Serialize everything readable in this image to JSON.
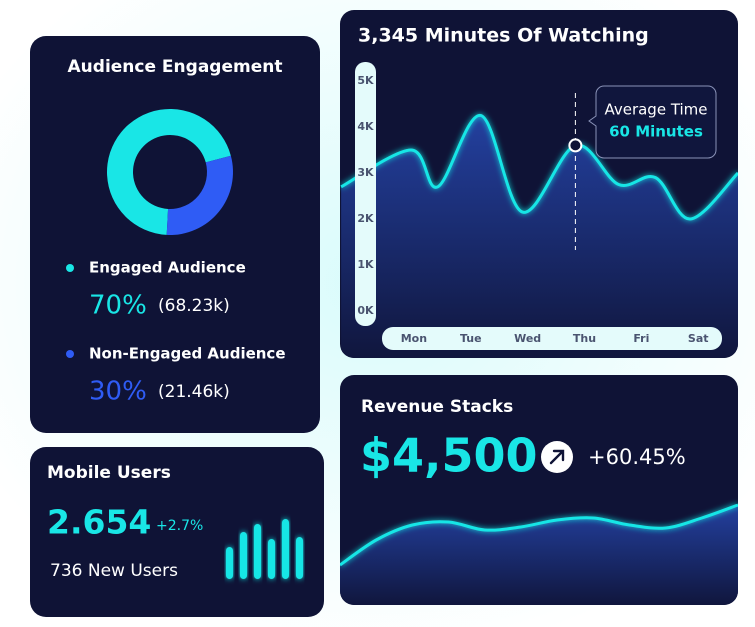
{
  "chart_data": [
    {
      "type": "pie",
      "title": "Audience Engagement",
      "categories": [
        "Engaged Audience",
        "Non-Engaged Audience"
      ],
      "values": [
        70,
        30
      ],
      "value_labels": [
        "70%",
        "30%"
      ],
      "count_labels": [
        "(68.23k)",
        "(21.46k)"
      ],
      "colors": [
        "#19e6e6",
        "#2f5cf5"
      ]
    },
    {
      "type": "line",
      "title": "3,345 Minutes Of Watching",
      "x": [
        -1.28,
        -0.05,
        0.42,
        1.18,
        1.91,
        2.84,
        3.6,
        4.25,
        4.86,
        5.7
      ],
      "values": [
        2700,
        3500,
        2700,
        4250,
        2150,
        3600,
        2750,
        2900,
        2000,
        3000
      ],
      "xlim": [
        -1.3,
        5.7
      ],
      "xticks": [
        {
          "value": 0,
          "label": "Mon"
        },
        {
          "value": 1,
          "label": "Tue"
        },
        {
          "value": 2,
          "label": "Wed"
        },
        {
          "value": 3,
          "label": "Thu"
        },
        {
          "value": 4,
          "label": "Fri"
        },
        {
          "value": 5,
          "label": "Sat"
        }
      ],
      "ylim": [
        0,
        5000
      ],
      "yticks": [
        {
          "value": 0,
          "label": "0K"
        },
        {
          "value": 1000,
          "label": "1K"
        },
        {
          "value": 2000,
          "label": "2K"
        },
        {
          "value": 3000,
          "label": "3K"
        },
        {
          "value": 4000,
          "label": "4K"
        },
        {
          "value": 5000,
          "label": "5K"
        }
      ],
      "color": "#19e6e6",
      "annotation": {
        "x": 2.84,
        "y": 3600,
        "title": "Average Time",
        "text": "60 Minutes"
      }
    },
    {
      "type": "bar",
      "title": "Mobile Users",
      "headline": "2.654",
      "change": "+2.7%",
      "subtitle": "736 New Users",
      "values": [
        32,
        47,
        55,
        40,
        60,
        42
      ],
      "ylim": [
        0,
        60
      ],
      "color": "#19e6e6"
    },
    {
      "type": "line",
      "title": "Revenue Stacks",
      "headline": "$4,500",
      "change": "+60.45%",
      "values": [
        40,
        65,
        80,
        83,
        75,
        78,
        85,
        87,
        80,
        77,
        87,
        100
      ],
      "ylim": [
        0,
        120
      ],
      "color": "#19e6e6"
    }
  ]
}
